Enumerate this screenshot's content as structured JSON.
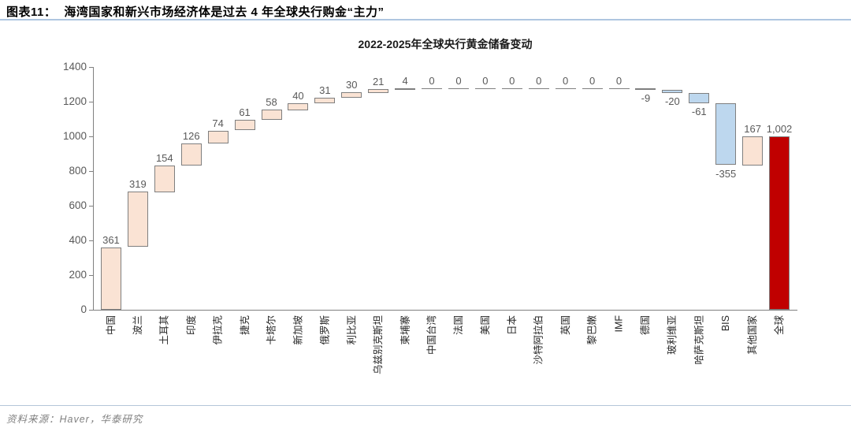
{
  "header": {
    "figure_label": "图表11：",
    "title": "海湾国家和新兴市场经济体是过去 4 年全球央行购金“主力”"
  },
  "footer": {
    "source": "资料来源：Haver，华泰研究"
  },
  "colors": {
    "increase_fill": "#fae3d4",
    "decrease_fill": "#bdd7ee",
    "total_fill": "#c00000",
    "bar_border": "#7f7f7f",
    "header_rule": "#aec6e0",
    "footer_rule": "#b4c6d9",
    "axis": "#808080"
  },
  "chart_data": {
    "type": "waterfall",
    "title": "2022-2025年全球央行黄金储备变动",
    "categories": [
      "中国",
      "波兰",
      "土耳其",
      "印度",
      "伊拉克",
      "捷克",
      "卡塔尔",
      "新加坡",
      "俄罗斯",
      "利比亚",
      "乌兹别克斯坦",
      "柬埔寨",
      "中国台湾",
      "法国",
      "美国",
      "日本",
      "沙特阿拉伯",
      "英国",
      "黎巴嫩",
      "IMF",
      "德国",
      "玻利维亚",
      "哈萨克斯坦",
      "BIS",
      "其他国家",
      "全球"
    ],
    "values": [
      361,
      319,
      154,
      126,
      74,
      61,
      58,
      40,
      31,
      30,
      21,
      4,
      0,
      0,
      0,
      0,
      0,
      0,
      0,
      0,
      -9,
      -20,
      -61,
      -355,
      167,
      1002
    ],
    "total_index": 25,
    "data_labels": [
      "361",
      "319",
      "154",
      "126",
      "74",
      "61",
      "58",
      "40",
      "31",
      "30",
      "21",
      "4",
      "0",
      "0",
      "0",
      "0",
      "0",
      "0",
      "0",
      "0",
      "-9",
      "-20",
      "-61",
      "-355",
      "167",
      "1,002"
    ],
    "xlabel": "",
    "ylabel": "",
    "ylim": [
      0,
      1400
    ],
    "ytick_step": 200,
    "ytick_labels": [
      "0",
      "200",
      "400",
      "600",
      "800",
      "1000",
      "1200",
      "1400"
    ],
    "grid": false,
    "legend": false
  }
}
